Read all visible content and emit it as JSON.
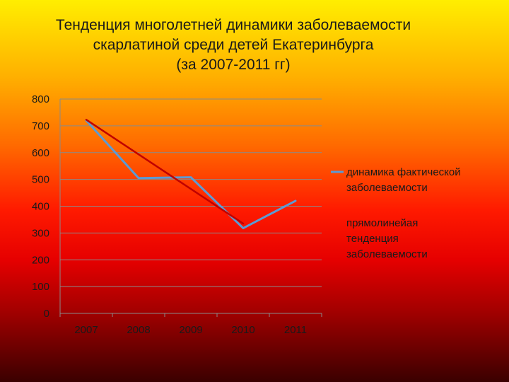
{
  "chart_data": {
    "type": "line",
    "title_lines": [
      "Тенденция многолетней динамики заболеваемости",
      "скарлатиной среди детей Екатеринбурга",
      "(за 2007-2011 гг)"
    ],
    "categories": [
      "2007",
      "2008",
      "2009",
      "2010",
      "2011"
    ],
    "y_ticks": [
      "0",
      "100",
      "200",
      "300",
      "400",
      "500",
      "600",
      "700",
      "800"
    ],
    "ylim": [
      0,
      800
    ],
    "grid": true,
    "legend_position": "right",
    "series": [
      {
        "name_lines": [
          "динамика фактической",
          "заболеваемости"
        ],
        "color": "#5b9bd5",
        "values": [
          720,
          505,
          508,
          318,
          420
        ]
      },
      {
        "name_lines": [
          "прямолинейая",
          "тенденция",
          "заболеваемости"
        ],
        "color": "#c00000",
        "trend": true,
        "values": [
          723,
          null,
          null,
          335,
          null
        ]
      }
    ]
  }
}
